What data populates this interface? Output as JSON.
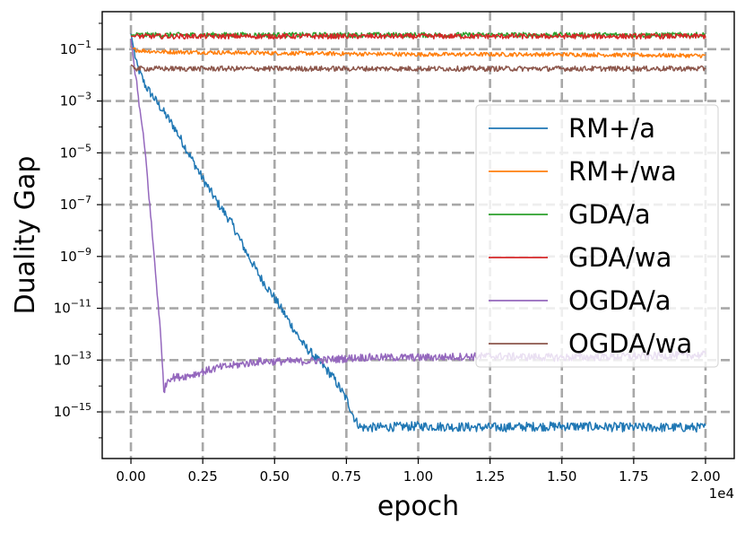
{
  "chart_data": {
    "type": "line",
    "title": "",
    "xlabel": "epoch",
    "ylabel": "Duality Gap",
    "x_offset_label": "1e4",
    "xlim": [
      -0.1,
      2.1
    ],
    "ylim_exponent": [
      -16.8,
      0.45
    ],
    "yscale": "log",
    "grid": true,
    "legend_position": "center-right",
    "x_ticks": [
      0.0,
      0.25,
      0.5,
      0.75,
      1.0,
      1.25,
      1.5,
      1.75,
      2.0
    ],
    "x_tick_labels": [
      "0.00",
      "0.25",
      "0.50",
      "0.75",
      "1.00",
      "1.25",
      "1.50",
      "1.75",
      "2.00"
    ],
    "y_tick_exponents": [
      -1,
      -3,
      -5,
      -7,
      -9,
      -11,
      -13,
      -15
    ],
    "y_tick_base": "10",
    "series": [
      {
        "name": "RM+/a",
        "color": "#1f77b4",
        "points": [
          [
            0.0,
            -0.4
          ],
          [
            0.02,
            -1.6
          ],
          [
            0.05,
            -2.4
          ],
          [
            0.1,
            -3.2
          ],
          [
            0.15,
            -4.0
          ],
          [
            0.2,
            -5.0
          ],
          [
            0.25,
            -6.0
          ],
          [
            0.3,
            -6.9
          ],
          [
            0.35,
            -7.7
          ],
          [
            0.4,
            -8.8
          ],
          [
            0.45,
            -9.8
          ],
          [
            0.5,
            -10.6
          ],
          [
            0.55,
            -11.5
          ],
          [
            0.6,
            -12.4
          ],
          [
            0.65,
            -13.0
          ],
          [
            0.7,
            -13.6
          ],
          [
            0.75,
            -14.5
          ],
          [
            0.78,
            -15.3
          ],
          [
            0.8,
            -15.6
          ],
          [
            0.85,
            -15.6
          ],
          [
            1.0,
            -15.55
          ],
          [
            1.25,
            -15.6
          ],
          [
            1.5,
            -15.55
          ],
          [
            1.75,
            -15.6
          ],
          [
            2.0,
            -15.6
          ]
        ],
        "noise": 0.18
      },
      {
        "name": "RM+/wa",
        "color": "#ff7f0e",
        "points": [
          [
            0.0,
            -0.9
          ],
          [
            0.01,
            -1.0
          ],
          [
            0.03,
            -1.05
          ],
          [
            0.1,
            -1.1
          ],
          [
            0.5,
            -1.15
          ],
          [
            1.0,
            -1.2
          ],
          [
            1.5,
            -1.2
          ],
          [
            2.0,
            -1.25
          ]
        ],
        "noise": 0.08
      },
      {
        "name": "GDA/a",
        "color": "#2ca02c",
        "points": [
          [
            0.0,
            -0.45
          ],
          [
            0.02,
            -0.45
          ],
          [
            1.0,
            -0.45
          ],
          [
            2.0,
            -0.45
          ]
        ],
        "noise": 0.1
      },
      {
        "name": "GDA/wa",
        "color": "#d62728",
        "points": [
          [
            0.0,
            -0.5
          ],
          [
            0.02,
            -0.5
          ],
          [
            1.0,
            -0.5
          ],
          [
            2.0,
            -0.5
          ]
        ],
        "noise": 0.1
      },
      {
        "name": "OGDA/a",
        "color": "#9467bd",
        "points": [
          [
            0.0,
            -0.6
          ],
          [
            0.05,
            -5.0
          ],
          [
            0.1,
            -11.5
          ],
          [
            0.115,
            -14.2
          ],
          [
            0.13,
            -13.7
          ],
          [
            0.2,
            -13.6
          ],
          [
            0.3,
            -13.3
          ],
          [
            0.45,
            -13.05
          ],
          [
            0.6,
            -13.05
          ],
          [
            0.8,
            -12.9
          ],
          [
            1.0,
            -12.9
          ],
          [
            1.25,
            -12.85
          ],
          [
            1.5,
            -12.9
          ],
          [
            1.75,
            -12.85
          ],
          [
            2.0,
            -12.8
          ]
        ],
        "noise": 0.15
      },
      {
        "name": "OGDA/wa",
        "color": "#8c564b",
        "points": [
          [
            0.0,
            -1.6
          ],
          [
            0.02,
            -1.75
          ],
          [
            0.5,
            -1.75
          ],
          [
            1.0,
            -1.75
          ],
          [
            1.5,
            -1.75
          ],
          [
            2.0,
            -1.75
          ]
        ],
        "noise": 0.1
      }
    ]
  }
}
